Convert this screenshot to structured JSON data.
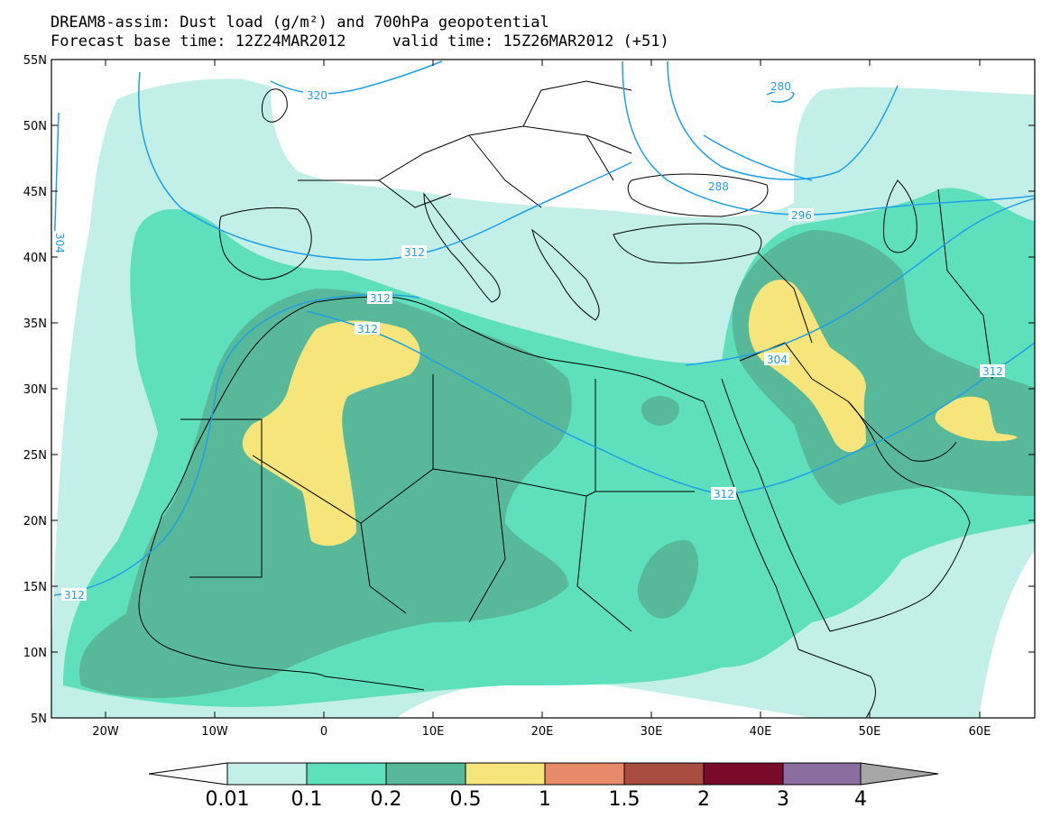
{
  "title": {
    "line1": "DREAM8-assim: Dust load (g/m²) and 700hPa geopotential",
    "line2": "Forecast base time: 12Z24MAR2012     valid time: 15Z26MAR2012 (+51)"
  },
  "axes": {
    "lat_labels": [
      "55N",
      "50N",
      "45N",
      "40N",
      "35N",
      "30N",
      "25N",
      "20N",
      "15N",
      "10N",
      "5N"
    ],
    "lon_labels": [
      "20W",
      "10W",
      "0",
      "10E",
      "20E",
      "30E",
      "40E",
      "50E",
      "60E"
    ]
  },
  "contour_labels": [
    "320",
    "280",
    "288",
    "296",
    "304",
    "312",
    "312",
    "312",
    "304",
    "312",
    "312",
    "312"
  ],
  "colorbar": {
    "labels": [
      "0.01",
      "0.1",
      "0.2",
      "0.5",
      "1",
      "1.5",
      "2",
      "3",
      "4"
    ],
    "colors": [
      "#ffffff",
      "#c2f0e8",
      "#5fe0bd",
      "#58b99a",
      "#f5e57a",
      "#e88a6a",
      "#a94d40",
      "#7a0a2a",
      "#8a6ea0",
      "#a6a6a6"
    ]
  },
  "colors": {
    "contour_line": "#1ea0e6",
    "border": "#000000",
    "level_0_01": "#c2f0e8",
    "level_0_1": "#5fe0bd",
    "level_0_2": "#58b99a",
    "level_0_5": "#f5e57a"
  }
}
